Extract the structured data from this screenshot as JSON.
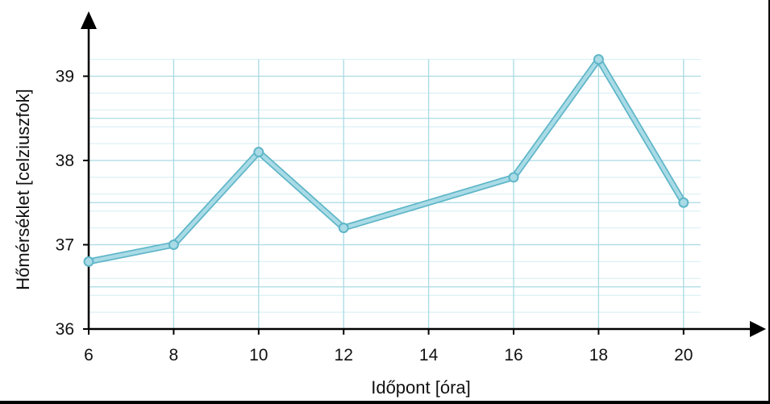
{
  "chart_data": {
    "type": "line",
    "title": "",
    "xlabel": "Időpont [óra]",
    "ylabel": "Hőmérséklet [celziuszfok]",
    "x": [
      6,
      8,
      10,
      12,
      16,
      18,
      20
    ],
    "series": [
      {
        "values": [
          36.8,
          37.0,
          38.1,
          37.2,
          37.8,
          39.2,
          37.5
        ]
      }
    ],
    "x_ticks": [
      "6",
      "8",
      "10",
      "12",
      "14",
      "16",
      "18",
      "20"
    ],
    "y_ticks": [
      "36",
      "37",
      "38",
      "39"
    ],
    "xlim": [
      6,
      20
    ],
    "ylim": [
      36,
      39.2
    ],
    "grid": true,
    "colors": {
      "line": "#a9dbe6",
      "line_edge": "#5fb6c8",
      "grid_major": "#a8dbe3",
      "grid_minor": "#d3eef2",
      "axis": "#000000"
    }
  }
}
